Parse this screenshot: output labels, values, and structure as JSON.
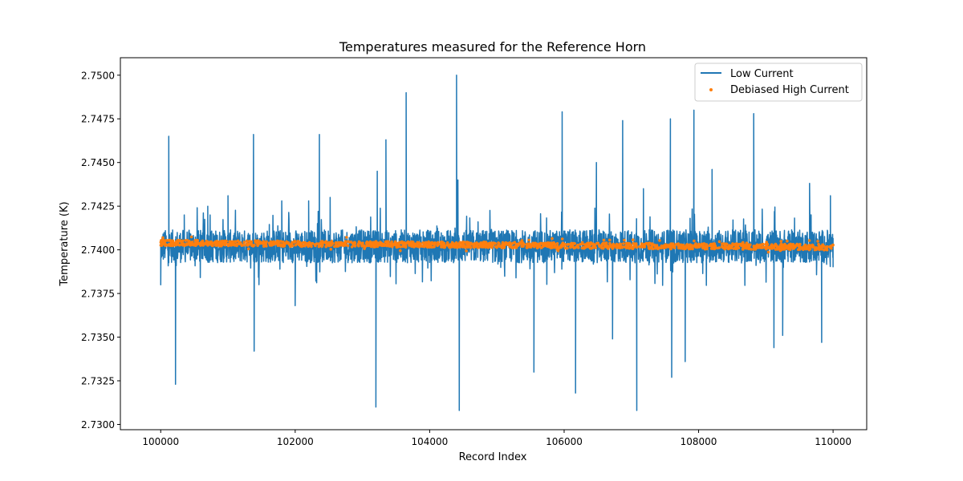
{
  "chart_data": {
    "type": "line",
    "title": "Temperatures measured for the Reference Horn",
    "xlabel": "Record Index",
    "ylabel": "Temperature (K)",
    "xlim": [
      99400,
      110500
    ],
    "ylim": [
      2.7297,
      2.751
    ],
    "xticks": [
      100000,
      102000,
      104000,
      106000,
      108000,
      110000
    ],
    "yticks": [
      2.73,
      2.7325,
      2.735,
      2.7375,
      2.74,
      2.7425,
      2.745,
      2.7475,
      2.75
    ],
    "xtick_labels": [
      "100000",
      "102000",
      "104000",
      "106000",
      "108000",
      "110000"
    ],
    "ytick_labels": [
      "2.7300",
      "2.7325",
      "2.7350",
      "2.7375",
      "2.7400",
      "2.7425",
      "2.7450",
      "2.7475",
      "2.7500"
    ],
    "legend_position": "top-right",
    "series": [
      {
        "name": "Low Current",
        "kind": "line",
        "color": "#1f77b4",
        "x_range": [
          100000,
          110000
        ],
        "baseline": 2.7402,
        "noise_band": [
          2.7393,
          2.7411
        ],
        "spikes": [
          {
            "x": 100000,
            "y": 2.738
          },
          {
            "x": 100120,
            "y": 2.7465
          },
          {
            "x": 100220,
            "y": 2.7323
          },
          {
            "x": 100350,
            "y": 2.742
          },
          {
            "x": 100700,
            "y": 2.7425
          },
          {
            "x": 101000,
            "y": 2.7431
          },
          {
            "x": 101380,
            "y": 2.7466
          },
          {
            "x": 101390,
            "y": 2.7342
          },
          {
            "x": 101800,
            "y": 2.7428
          },
          {
            "x": 102000,
            "y": 2.7368
          },
          {
            "x": 102200,
            "y": 2.7428
          },
          {
            "x": 102360,
            "y": 2.7466
          },
          {
            "x": 102520,
            "y": 2.743
          },
          {
            "x": 103200,
            "y": 2.731
          },
          {
            "x": 103220,
            "y": 2.7445
          },
          {
            "x": 103350,
            "y": 2.7463
          },
          {
            "x": 103650,
            "y": 2.749
          },
          {
            "x": 104400,
            "y": 2.75
          },
          {
            "x": 104440,
            "y": 2.7308
          },
          {
            "x": 104420,
            "y": 2.744
          },
          {
            "x": 105550,
            "y": 2.733
          },
          {
            "x": 105970,
            "y": 2.7479
          },
          {
            "x": 106170,
            "y": 2.7318
          },
          {
            "x": 106480,
            "y": 2.745
          },
          {
            "x": 106720,
            "y": 2.7349
          },
          {
            "x": 106870,
            "y": 2.7474
          },
          {
            "x": 107080,
            "y": 2.7308
          },
          {
            "x": 107180,
            "y": 2.7435
          },
          {
            "x": 107580,
            "y": 2.7475
          },
          {
            "x": 107600,
            "y": 2.7327
          },
          {
            "x": 107800,
            "y": 2.7336
          },
          {
            "x": 107930,
            "y": 2.748
          },
          {
            "x": 108200,
            "y": 2.7446
          },
          {
            "x": 108820,
            "y": 2.7478
          },
          {
            "x": 109120,
            "y": 2.7344
          },
          {
            "x": 109250,
            "y": 2.7351
          },
          {
            "x": 109650,
            "y": 2.7438
          },
          {
            "x": 109830,
            "y": 2.7347
          },
          {
            "x": 109960,
            "y": 2.7431
          },
          {
            "x": 110000,
            "y": 2.739
          }
        ]
      },
      {
        "name": "Debiased High Current",
        "kind": "scatter",
        "color": "#ff7f0e",
        "x_range": [
          100000,
          110000
        ],
        "trend_start": 2.7404,
        "trend_end": 2.74015,
        "spread": 0.0002
      }
    ]
  }
}
